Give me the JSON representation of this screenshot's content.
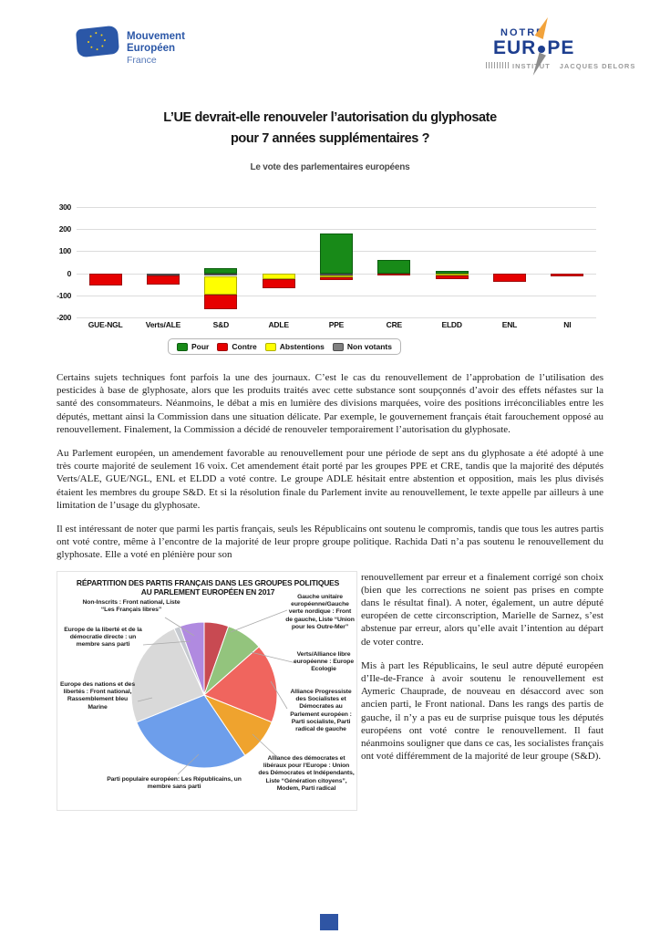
{
  "header": {
    "left_logo": {
      "line1": "Mouvement",
      "line2": "Européen",
      "line3": "France"
    },
    "right_logo": {
      "notre": "NOTRE",
      "eur": "EUR",
      "pe": "PE",
      "institut": "INSTITUT",
      "jacques_delors": "JACQUES DELORS",
      "blue": "#1d3e8f",
      "orange": "#f2a33c"
    }
  },
  "title": {
    "line1": "L’UE devrait-elle renouveler l’autorisation du glyphosate",
    "line2": "pour 7 années supplémentaires ?"
  },
  "subtitle": "Le vote des parlementaires européens",
  "chart_data": [
    {
      "type": "bar",
      "stacked": true,
      "title": "Le vote des parlementaires européens",
      "categories": [
        "GUE-NGL",
        "Verts/ALE",
        "S&D",
        "ADLE",
        "PPE",
        "CRE",
        "ELDD",
        "ENL",
        "NI"
      ],
      "series": [
        {
          "id": "pour",
          "name": "Pour",
          "color": "#188a18",
          "values": [
            0,
            0,
            25,
            0,
            182,
            62,
            12,
            0,
            0
          ]
        },
        {
          "id": "contre",
          "name": "Contre",
          "color": "#e60000",
          "values": [
            -56,
            -44,
            -67,
            -41,
            -14,
            -8,
            -18,
            -40,
            -14
          ]
        },
        {
          "id": "abstentions",
          "name": "Abstentions",
          "color": "#ffff00",
          "values": [
            0,
            0,
            -83,
            -27,
            -8,
            0,
            -10,
            0,
            0
          ]
        },
        {
          "id": "non_votants",
          "name": "Non votants",
          "color": "#808080",
          "values": [
            0,
            -8,
            -12,
            0,
            -10,
            0,
            0,
            0,
            0
          ]
        }
      ],
      "below_zero_stack_order": [
        "non_votants",
        "abstentions",
        "contre"
      ],
      "yticks": [
        300,
        200,
        100,
        0,
        -100,
        -200
      ],
      "ylim": [
        -200,
        300
      ],
      "grid": true,
      "legend_position": "bottom"
    },
    {
      "type": "pie",
      "title": "RÉPARTITION DES PARTIS FRANÇAIS DANS LES GROUPES POLITIQUES AU PARLEMENT EUROPÉEN EN 2017",
      "total_seats": 74,
      "slices": [
        {
          "id": "gue",
          "label": "Gauche unitaire européenne/Gauche verte nordique : Front de gauche, Liste “Union pour les Outre-Mer”",
          "value": 4,
          "color": "#c84a52"
        },
        {
          "id": "verts",
          "label": "Verts/Alliance libre européenne : Europe Ecologie",
          "value": 6,
          "color": "#93c47d"
        },
        {
          "id": "sd",
          "label": "Alliance Progressiste des Socialistes et Démocrates au Parlement européen : Parti socialiste, Parti radical de gauche",
          "value": 13,
          "color": "#f0655e"
        },
        {
          "id": "adle",
          "label": "Alliance des démocrates et libéraux pour l’Europe : Union des Démocrates et Indépendants, Liste “Génération citoyens”, Modem, Parti radical",
          "value": 7,
          "color": "#efa32e"
        },
        {
          "id": "ppe",
          "label": "Parti populaire européen: Les Républicains, un membre sans parti",
          "value": 21,
          "color": "#6d9eeb"
        },
        {
          "id": "enl",
          "label": "Europe des nations et des libertés : Front national, Rassemblement bleu Marine",
          "value": 18,
          "color": "#d9d9d9"
        },
        {
          "id": "eldd",
          "label": "Europe de la liberté et de la démocratie directe : un membre sans parti",
          "value": 1,
          "color": "#c5c9cf"
        },
        {
          "id": "ni",
          "label": "Non-Inscrits : Front national, Liste “Les Français libres”",
          "value": 4,
          "color": "#b08ae0"
        }
      ]
    }
  ],
  "paragraphs": {
    "p1": "Certains sujets techniques font parfois la une des journaux. C’est le cas du renouvellement de l’approbation de l’utilisation des pesticides à base de glyphosate, alors que les produits traités avec cette substance sont soupçonnés d’avoir des effets néfastes sur la santé des consommateurs. Néanmoins, le débat a mis en lumière des divisions marquées, voire des positions irréconciliables entre les députés, mettant ainsi la Commission dans une situation délicate. Par exemple, le gouvernement français était farouchement opposé au renouvellement. Finalement, la Commission a décidé de renouveler temporairement l’autorisation du glyphosate.",
    "p2": "Au Parlement européen, un amendement favorable au renouvellement pour une période de sept ans du glyphosate a été adopté à une très courte majorité de seulement 16 voix. Cet amendement était porté par les groupes PPE et CRE, tandis que la majorité des députés Verts/ALE, GUE/NGL, ENL et ELDD a voté contre. Le groupe ADLE hésitait entre abstention et opposition, mais les plus divisés étaient les membres du groupe S&D. Et si la résolution finale du Parlement invite au renouvellement, le texte appelle par ailleurs à une limitation de l’usage du glyphosate.",
    "p3_intro": "Il est intéressant de noter que parmi les partis français, seuls les Républicains ont soutenu le compromis, tandis que tous les autres partis ont voté contre, même à l’encontre de la majorité de leur propre groupe politique. Rachida Dati n’a pas soutenu le renouvellement du glyphosate. Elle a voté en plénière pour son",
    "p3_wrap": "renouvellement par erreur et a finalement corrigé son choix (bien que les corrections ne soient pas prises en compte dans le résultat final). A noter, également, un autre député européen de cette circonscription, Marielle de Sarnez, s’est abstenue par erreur, alors qu’elle avait l’intention au départ de voter contre.",
    "p4": "Mis à part les Républicains, le seul autre député européen d’Ile-de-France à avoir soutenu le renouvellement est Aymeric Chauprade, de nouveau en désaccord avec son ancien parti, le Front national. Dans les rangs des partis de gauche, il n’y a pas eu de surprise puisque tous les députés européens ont voté contre le renouvellement. Il faut néanmoins souligner que dans ce cas, les socialistes français ont voté différemment de la majorité de leur groupe (S&D)."
  },
  "footer": {
    "marker_color": "#2f55a4"
  }
}
